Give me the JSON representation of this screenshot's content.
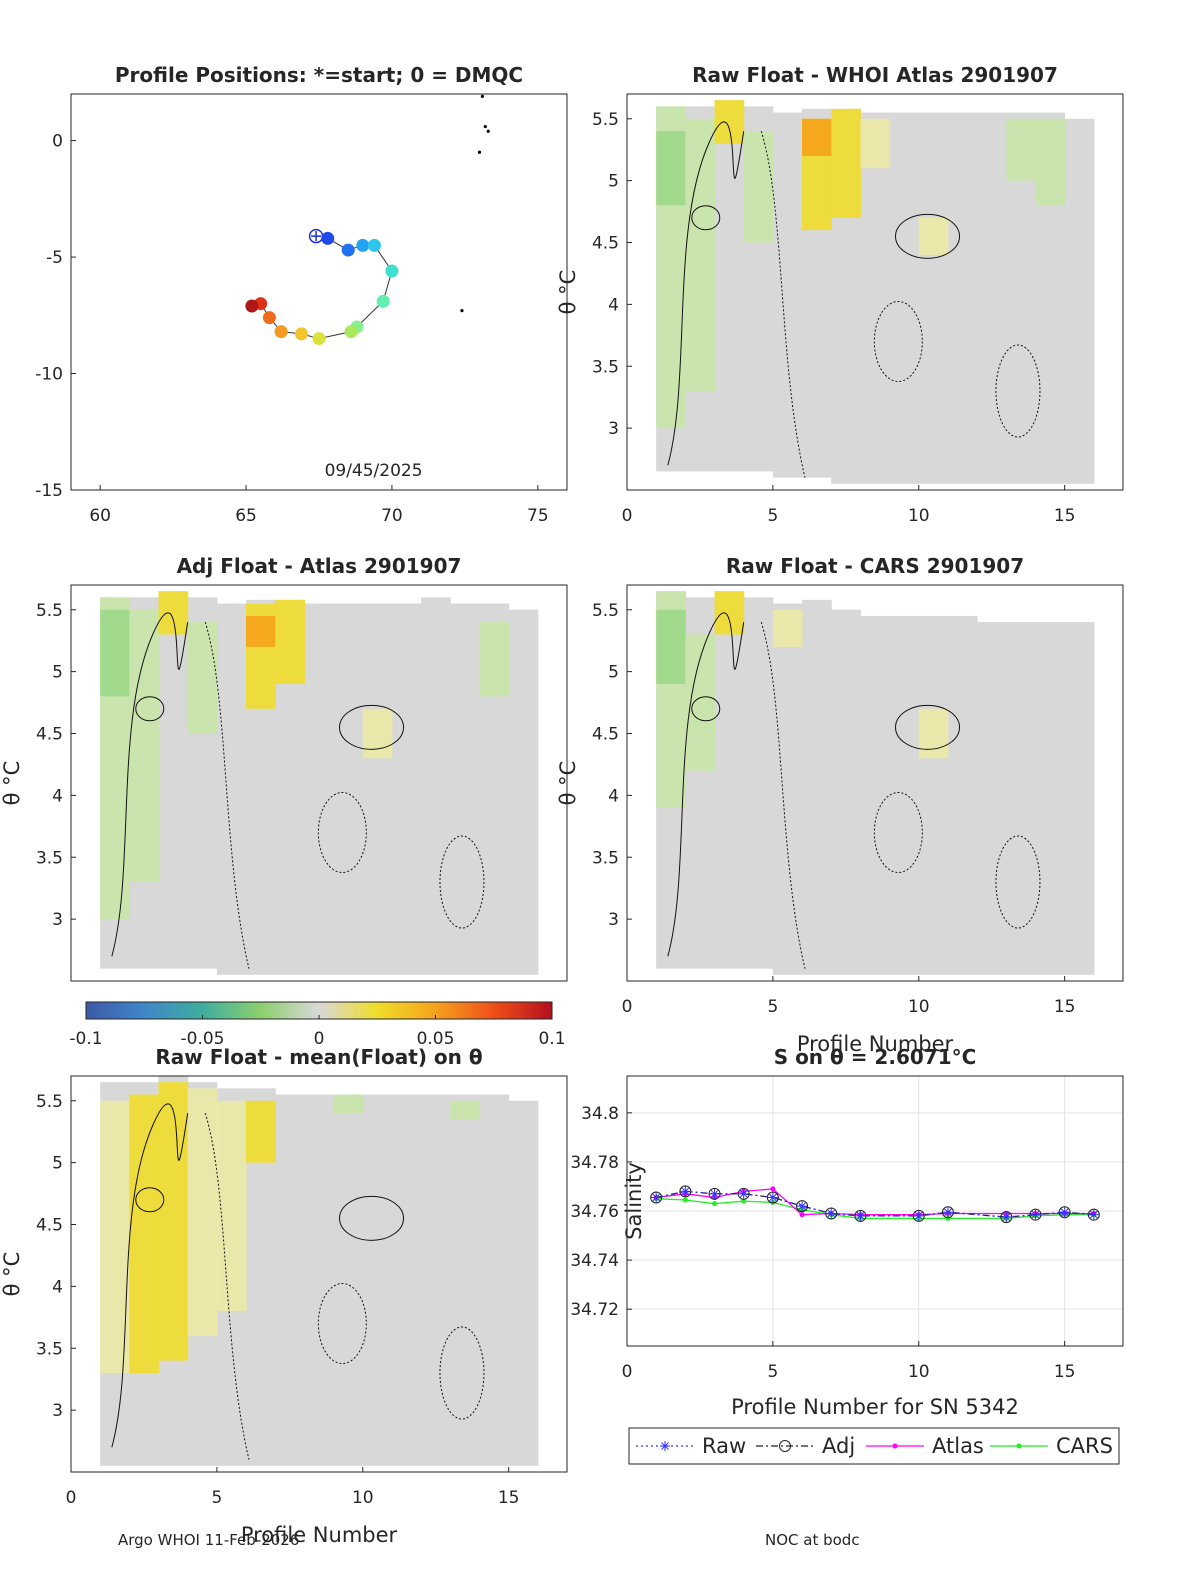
{
  "footer": {
    "left": "Argo WHOI 11-Feb-2026",
    "right": "NOC at bodc"
  },
  "colors": {
    "gray": "#d8d8d8",
    "lightgreen": "#c9e6a8",
    "green": "#9dd889",
    "paleyellow": "#ece9a6",
    "yellow": "#f0dd2a",
    "orange": "#f5a21c",
    "series_raw": "#3333ff",
    "series_adj": "#222222",
    "series_atlas": "#ff00ff",
    "series_cars": "#22ee22"
  },
  "colorbar": {
    "ticks": [
      "-0.1",
      "-0.05",
      "0",
      "0.05",
      "0.1"
    ],
    "range": [
      -0.1,
      0.1
    ],
    "stops": [
      "#3d5aa8",
      "#3f86c8",
      "#3fae9e",
      "#8ccf6e",
      "#d8d8d8",
      "#f0dd2a",
      "#f5a21c",
      "#ef4f19",
      "#b40f1f"
    ]
  },
  "chart_data": [
    {
      "id": "positions",
      "type": "scatter",
      "title": "Profile Positions: *=start; 0 = DMQC",
      "xlim": [
        59,
        76
      ],
      "ylim": [
        -15,
        2
      ],
      "xticks": [
        "60",
        "65",
        "70",
        "75"
      ],
      "yticks": [
        "0",
        "-5",
        "-10",
        "-15"
      ],
      "xlabel": "",
      "ylabel": "",
      "annotation": "09/45/2025",
      "track": [
        [
          67.4,
          -4.1
        ],
        [
          67.8,
          -4.2
        ],
        [
          68.5,
          -4.7
        ],
        [
          69.0,
          -4.5
        ],
        [
          69.4,
          -4.5
        ],
        [
          70.0,
          -5.6
        ],
        [
          69.7,
          -6.9
        ],
        [
          68.8,
          -8.0
        ],
        [
          68.6,
          -8.2
        ],
        [
          67.5,
          -8.5
        ],
        [
          66.9,
          -8.3
        ],
        [
          66.2,
          -8.2
        ],
        [
          65.8,
          -7.6
        ],
        [
          65.5,
          -7.0
        ],
        [
          65.2,
          -7.1
        ]
      ],
      "land": [
        [
          73.1,
          1.9
        ],
        [
          73.2,
          0.6
        ],
        [
          73.3,
          0.4
        ],
        [
          73.0,
          -0.5
        ],
        [
          72.4,
          -7.3
        ]
      ]
    },
    {
      "id": "raw_whoi",
      "type": "heatmap",
      "title": "Raw Float - WHOI Atlas  2901907",
      "xlim": [
        0,
        17
      ],
      "ylim": [
        2.5,
        5.7
      ],
      "xticks": [
        "0",
        "5",
        "10",
        "15"
      ],
      "yticks": [
        "5.5",
        "5",
        "4.5",
        "4",
        "3.5",
        "3"
      ],
      "xlabel": "",
      "ylabel": "θ °C",
      "columns": [
        1,
        16
      ],
      "tops": [
        5.6,
        5.6,
        5.65,
        5.6,
        5.55,
        5.58,
        5.58,
        5.55,
        5.55,
        5.55,
        5.55,
        5.55,
        5.55,
        5.55,
        5.5
      ],
      "bottoms": [
        2.65,
        2.65,
        2.65,
        2.65,
        2.6,
        2.6,
        2.55,
        2.55,
        2.55,
        2.55,
        2.55,
        2.55,
        2.55,
        2.55,
        2.55
      ],
      "anomalies": [
        {
          "x": 1,
          "from": 3.0,
          "to": 5.6,
          "c": "lightgreen"
        },
        {
          "x": 1,
          "from": 4.8,
          "to": 5.4,
          "c": "green"
        },
        {
          "x": 2,
          "from": 3.3,
          "to": 5.5,
          "c": "lightgreen"
        },
        {
          "x": 3,
          "from": 5.3,
          "to": 5.65,
          "c": "yellow"
        },
        {
          "x": 4,
          "from": 4.5,
          "to": 5.4,
          "c": "lightgreen"
        },
        {
          "x": 6,
          "from": 4.6,
          "to": 5.5,
          "c": "yellow"
        },
        {
          "x": 6,
          "from": 5.2,
          "to": 5.5,
          "c": "orange"
        },
        {
          "x": 7,
          "from": 4.7,
          "to": 5.58,
          "c": "yellow"
        },
        {
          "x": 8,
          "from": 5.1,
          "to": 5.5,
          "c": "paleyellow"
        },
        {
          "x": 10,
          "from": 4.4,
          "to": 4.7,
          "c": "paleyellow"
        },
        {
          "x": 13,
          "from": 5.0,
          "to": 5.5,
          "c": "lightgreen"
        },
        {
          "x": 14,
          "from": 4.8,
          "to": 5.5,
          "c": "lightgreen"
        }
      ]
    },
    {
      "id": "adj_atlas",
      "type": "heatmap",
      "title": "Adj Float - Atlas  2901907",
      "xlim": [
        0,
        17
      ],
      "ylim": [
        2.5,
        5.7
      ],
      "xticks": [],
      "yticks": [
        "5.5",
        "5",
        "4.5",
        "4",
        "3.5",
        "3"
      ],
      "xlabel": "",
      "ylabel": "θ °C",
      "columns": [
        1,
        16
      ],
      "tops": [
        5.6,
        5.6,
        5.65,
        5.6,
        5.55,
        5.58,
        5.58,
        5.55,
        5.55,
        5.55,
        5.55,
        5.6,
        5.55,
        5.55,
        5.5
      ],
      "bottoms": [
        2.6,
        2.6,
        2.6,
        2.6,
        2.55,
        2.55,
        2.55,
        2.55,
        2.55,
        2.55,
        2.55,
        2.55,
        2.55,
        2.55,
        2.55
      ],
      "anomalies": [
        {
          "x": 1,
          "from": 3.0,
          "to": 5.6,
          "c": "lightgreen"
        },
        {
          "x": 1,
          "from": 4.8,
          "to": 5.5,
          "c": "green"
        },
        {
          "x": 2,
          "from": 3.3,
          "to": 5.5,
          "c": "lightgreen"
        },
        {
          "x": 3,
          "from": 5.3,
          "to": 5.65,
          "c": "yellow"
        },
        {
          "x": 4,
          "from": 4.5,
          "to": 5.4,
          "c": "lightgreen"
        },
        {
          "x": 6,
          "from": 4.7,
          "to": 5.55,
          "c": "yellow"
        },
        {
          "x": 6,
          "from": 5.2,
          "to": 5.45,
          "c": "orange"
        },
        {
          "x": 7,
          "from": 4.9,
          "to": 5.58,
          "c": "yellow"
        },
        {
          "x": 10,
          "from": 4.3,
          "to": 4.7,
          "c": "paleyellow"
        },
        {
          "x": 14,
          "from": 4.8,
          "to": 5.4,
          "c": "lightgreen"
        }
      ]
    },
    {
      "id": "raw_cars",
      "type": "heatmap",
      "title": "Raw Float - CARS  2901907",
      "xlim": [
        0,
        17
      ],
      "ylim": [
        2.5,
        5.7
      ],
      "xticks": [
        "0",
        "5",
        "10",
        "15"
      ],
      "yticks": [
        "5.5",
        "5",
        "4.5",
        "4",
        "3.5",
        "3"
      ],
      "xlabel": "Profile Number",
      "ylabel": "θ °C",
      "columns": [
        1,
        16
      ],
      "tops": [
        5.65,
        5.6,
        5.65,
        5.6,
        5.55,
        5.58,
        5.5,
        5.45,
        5.45,
        5.45,
        5.45,
        5.4,
        5.4,
        5.4,
        5.4
      ],
      "bottoms": [
        2.6,
        2.6,
        2.6,
        2.6,
        2.55,
        2.55,
        2.55,
        2.55,
        2.55,
        2.55,
        2.55,
        2.55,
        2.55,
        2.55,
        2.55
      ],
      "anomalies": [
        {
          "x": 1,
          "from": 3.9,
          "to": 5.65,
          "c": "lightgreen"
        },
        {
          "x": 1,
          "from": 4.9,
          "to": 5.5,
          "c": "green"
        },
        {
          "x": 3,
          "from": 5.3,
          "to": 5.65,
          "c": "yellow"
        },
        {
          "x": 5,
          "from": 5.2,
          "to": 5.5,
          "c": "paleyellow"
        },
        {
          "x": 10,
          "from": 4.3,
          "to": 4.7,
          "c": "paleyellow"
        },
        {
          "x": 2,
          "from": 4.2,
          "to": 5.3,
          "c": "lightgreen"
        }
      ]
    },
    {
      "id": "raw_mean",
      "type": "heatmap",
      "title": "Raw Float - mean(Float) on θ",
      "xlim": [
        0,
        17
      ],
      "ylim": [
        2.5,
        5.7
      ],
      "xticks": [
        "0",
        "5",
        "10",
        "15"
      ],
      "yticks": [
        "5.5",
        "5",
        "4.5",
        "4",
        "3.5",
        "3"
      ],
      "xlabel": "Profile Number",
      "ylabel": "θ °C",
      "columns": [
        1,
        16
      ],
      "tops": [
        5.65,
        5.65,
        5.7,
        5.65,
        5.6,
        5.6,
        5.55,
        5.55,
        5.55,
        5.55,
        5.55,
        5.55,
        5.55,
        5.55,
        5.5
      ],
      "bottoms": [
        2.55,
        2.55,
        2.55,
        2.55,
        2.55,
        2.55,
        2.55,
        2.55,
        2.55,
        2.55,
        2.55,
        2.55,
        2.55,
        2.55,
        2.55
      ],
      "anomalies": [
        {
          "x": 1,
          "from": 3.3,
          "to": 5.5,
          "c": "paleyellow"
        },
        {
          "x": 2,
          "from": 3.3,
          "to": 5.55,
          "c": "yellow"
        },
        {
          "x": 3,
          "from": 3.4,
          "to": 5.65,
          "c": "yellow"
        },
        {
          "x": 4,
          "from": 3.6,
          "to": 5.6,
          "c": "paleyellow"
        },
        {
          "x": 5,
          "from": 3.8,
          "to": 5.5,
          "c": "paleyellow"
        },
        {
          "x": 6,
          "from": 5.0,
          "to": 5.5,
          "c": "yellow"
        },
        {
          "x": 9,
          "from": 5.4,
          "to": 5.55,
          "c": "lightgreen"
        },
        {
          "x": 13,
          "from": 5.35,
          "to": 5.5,
          "c": "lightgreen"
        }
      ]
    },
    {
      "id": "salinity",
      "type": "line",
      "title": "S on θ = 2.6071°C",
      "xlim": [
        0,
        17
      ],
      "ylim": [
        34.705,
        34.815
      ],
      "xticks": [
        "0",
        "5",
        "10",
        "15"
      ],
      "yticks": [
        "34.8",
        "34.78",
        "34.76",
        "34.74",
        "34.72"
      ],
      "xlabel": "Profile Number for SN 5342",
      "ylabel": "Salinity",
      "x": [
        1,
        2,
        3,
        4,
        5,
        6,
        7,
        8,
        10,
        11,
        13,
        14,
        15,
        16
      ],
      "series": [
        {
          "name": "Raw",
          "values": [
            34.7655,
            34.768,
            34.767,
            34.767,
            34.7655,
            34.762,
            34.759,
            34.758,
            34.758,
            34.7595,
            34.7575,
            34.7585,
            34.7595,
            34.7585
          ]
        },
        {
          "name": "Adj",
          "values": [
            34.7655,
            34.768,
            34.767,
            34.767,
            34.7655,
            34.762,
            34.759,
            34.758,
            34.758,
            34.7595,
            34.7575,
            34.7585,
            34.7595,
            34.7585
          ]
        },
        {
          "name": "Atlas",
          "values": [
            34.7655,
            34.767,
            34.7655,
            34.768,
            34.769,
            34.7585,
            34.759,
            34.7585,
            34.7585,
            34.759,
            34.759,
            34.759,
            34.759,
            34.759
          ]
        },
        {
          "name": "CARS",
          "values": [
            34.765,
            34.7645,
            34.763,
            34.764,
            34.7635,
            34.7605,
            34.7585,
            34.757,
            34.757,
            34.757,
            34.757,
            34.758,
            34.7585,
            34.7585
          ]
        }
      ]
    }
  ]
}
